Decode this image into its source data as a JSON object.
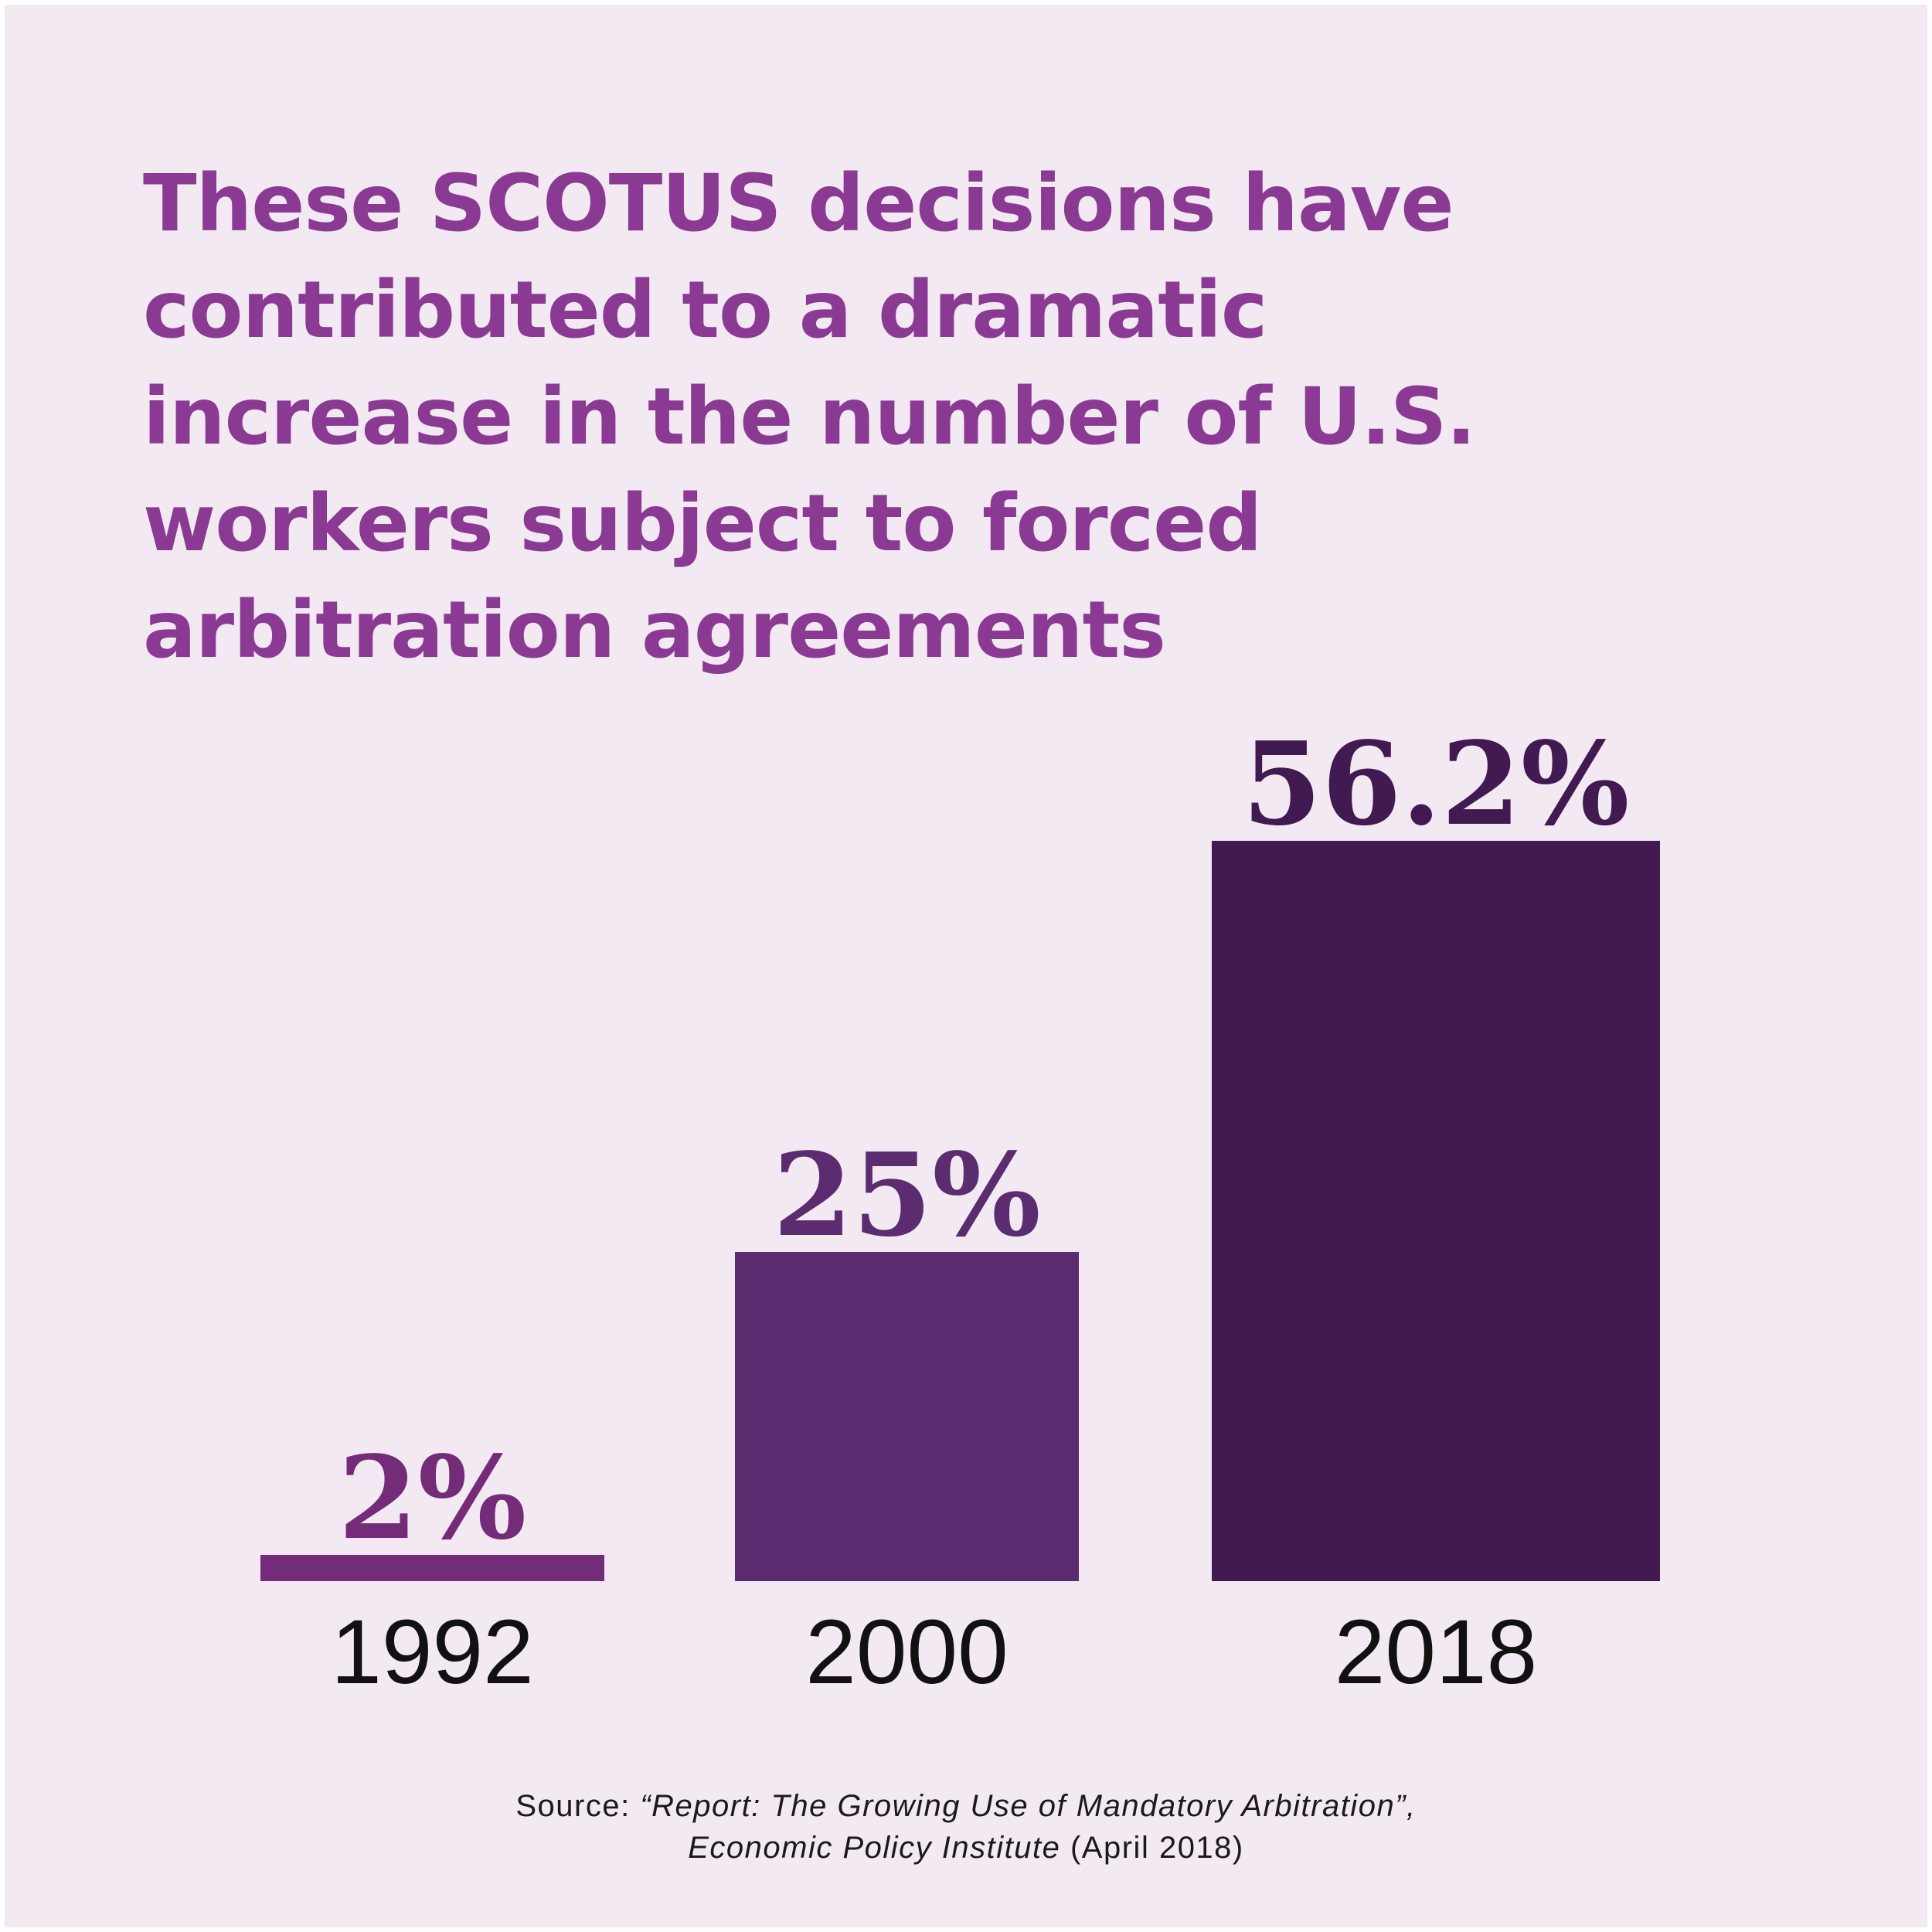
{
  "headline": {
    "lines": [
      "These SCOTUS decisions have",
      "contributed to a dramatic",
      "increase in the number of U.S.",
      "workers subject to forced",
      "arbitration agreements"
    ]
  },
  "chart_data": {
    "type": "bar",
    "categories": [
      "1992",
      "2000",
      "2018"
    ],
    "values": [
      2,
      25,
      56.2
    ],
    "value_labels": [
      "2%",
      "25%",
      "56.2%"
    ],
    "unit": "%",
    "ylim": [
      0,
      56.2
    ],
    "grid": false,
    "legend": "none",
    "title": "These SCOTUS decisions have contributed to a dramatic increase in the number of U.S. workers subject to forced arbitration agreements",
    "xlabel": "",
    "ylabel": "",
    "colors": [
      "#742b78",
      "#5b2c6f",
      "#421a52"
    ]
  },
  "source": {
    "prefix": "Source: ",
    "report_title": "“Report: The Growing Use of Mandatory Arbitration”,",
    "publisher": "Economic Policy Institute",
    "date": " (April 2018)"
  },
  "colors": {
    "background": "#f3e9f3",
    "headline": "#8b3a93",
    "year_text": "#111111"
  }
}
